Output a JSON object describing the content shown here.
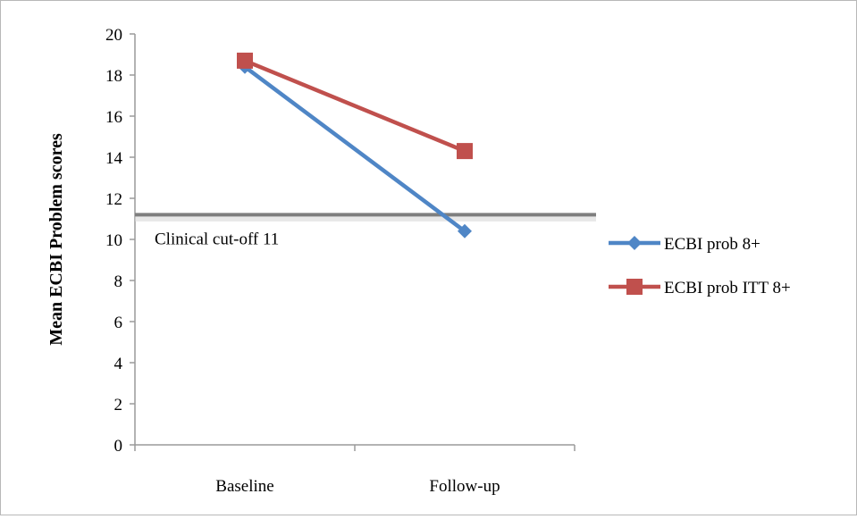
{
  "chart_data": {
    "type": "line",
    "title": "",
    "xlabel": "",
    "ylabel": "Mean ECBI Problem scores",
    "categories": [
      "Baseline",
      "Follow-up"
    ],
    "ylim": [
      0,
      20
    ],
    "yticks": [
      0,
      2,
      4,
      6,
      8,
      10,
      12,
      14,
      16,
      18,
      20
    ],
    "ytick_labels": [
      "0",
      "2",
      "4",
      "6",
      "8",
      "10",
      "12",
      "14",
      "16",
      "18",
      "20"
    ],
    "grid": false,
    "legend_position": "right",
    "series": [
      {
        "name": "ECBI prob 8+",
        "values": [
          18.4,
          10.4
        ],
        "color": "#4f86c6",
        "marker": "diamond"
      },
      {
        "name": "ECBI prob ITT 8+",
        "values": [
          18.7,
          14.3
        ],
        "color": "#c0504d",
        "marker": "square"
      }
    ],
    "reference_line": {
      "value": 11.2,
      "label": "Clinical cut-off 11",
      "color": "#7f7f7f"
    }
  }
}
